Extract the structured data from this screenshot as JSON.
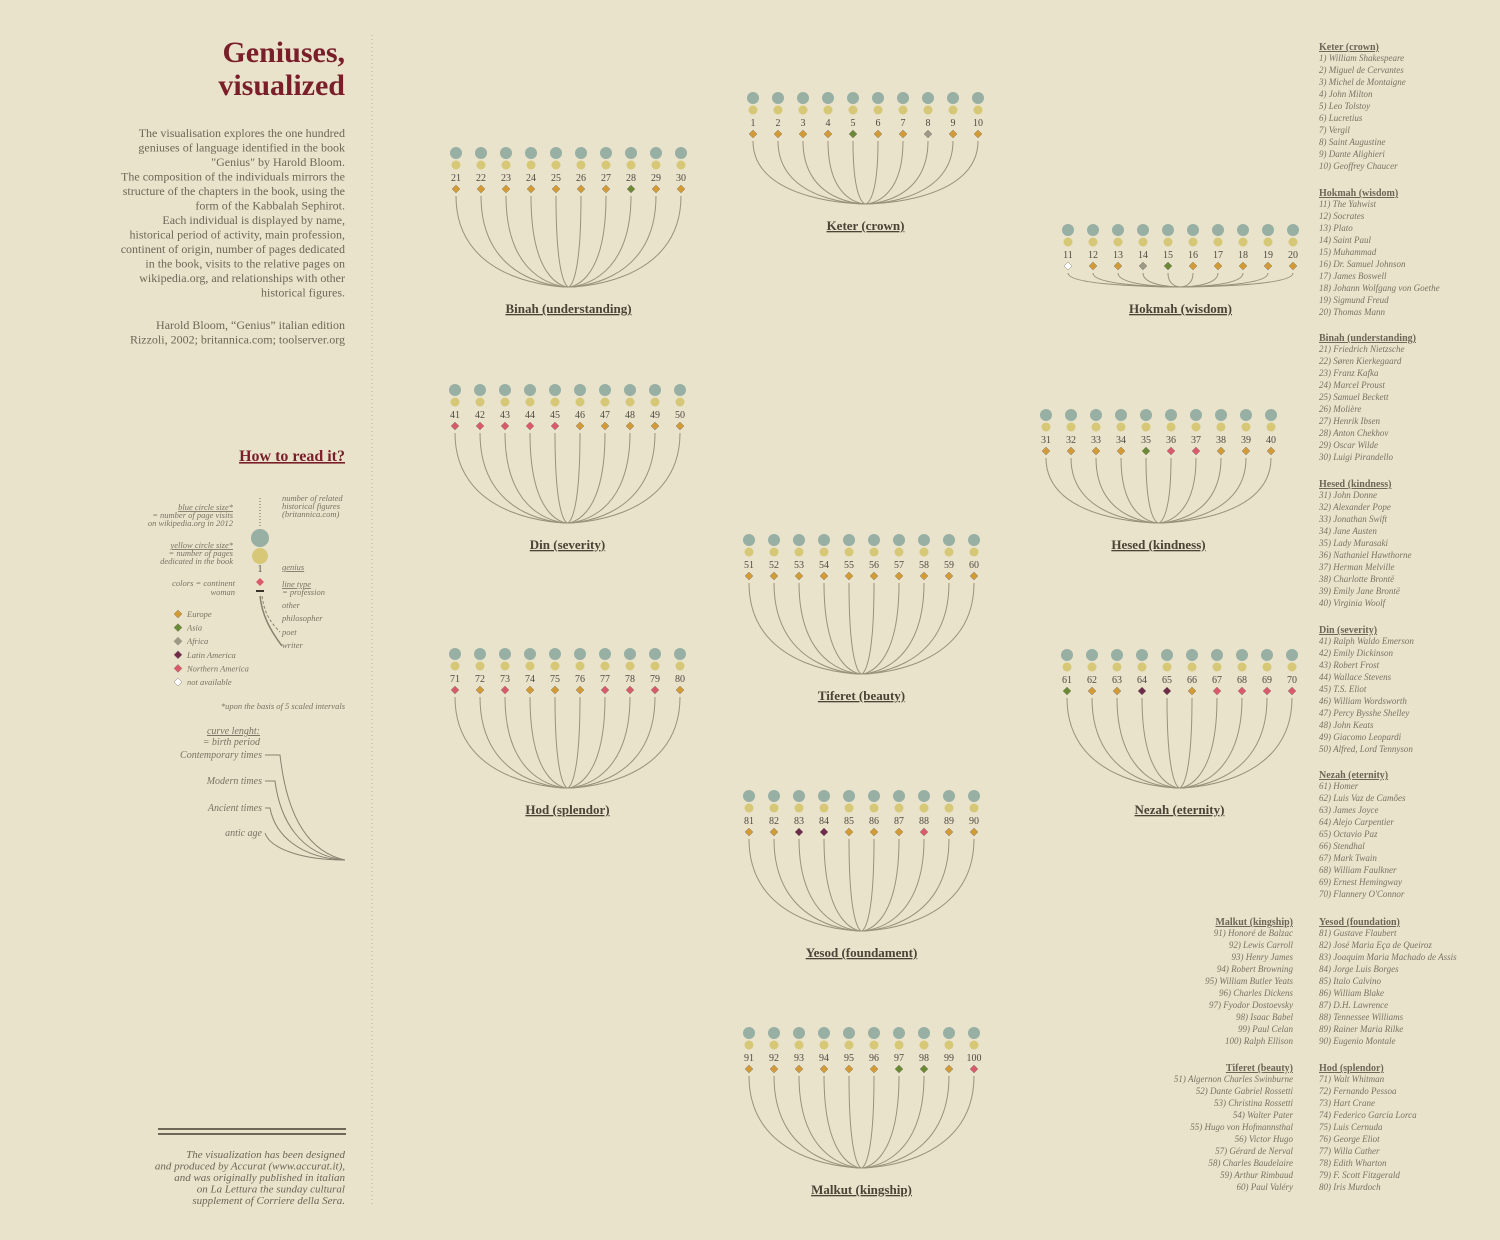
{
  "header": {
    "title_lines": [
      "Geniuses,",
      "visualized"
    ],
    "description": [
      "The visualisation explores the one hundred",
      "geniuses of language identified in the book",
      "\"Genius\" by Harold Bloom.",
      "The composition of the individuals mirrors the",
      "structure of the chapters in the book, using the",
      "form of the Kabbalah Sephirot.",
      "Each individual is displayed by name,",
      "historical period of activity, main profession,",
      "continent of origin, number of pages dedicated",
      "in the book, visits to the relative pages on",
      "wikipedia.org, and relationships with other",
      "historical figures."
    ],
    "sources": [
      "Harold Bloom, “Genius” italian edition",
      "Rizzoli, 2002; britannica.com; toolserver.org"
    ]
  },
  "legend": {
    "title": "How to read it?",
    "blue_title": "blue circle size*",
    "blue_text": [
      "= number of page visits",
      "on wikipedia.org in 2012"
    ],
    "yellow_title": "yellow circle size*",
    "yellow_text": [
      "= number of pages",
      "dedicated in the book"
    ],
    "related": [
      "number of related",
      "historical figures",
      "(britannica.com)"
    ],
    "sample_number": "1",
    "genius": "genius",
    "colors": "colors = continent",
    "woman": "woman",
    "line_type": "line type",
    "profession": "= profession",
    "professions": [
      "other",
      "philosopher",
      "poet",
      "writer"
    ],
    "continents": [
      {
        "name": "Europe",
        "color": "#d29b35"
      },
      {
        "name": "Asia",
        "color": "#6b8a36"
      },
      {
        "name": "Africa",
        "color": "#9c9a86"
      },
      {
        "name": "Latin America",
        "color": "#6e2c4a"
      },
      {
        "name": "Northern America",
        "color": "#d95a6c"
      },
      {
        "name": "not available",
        "color": "#ffffff"
      }
    ],
    "note": "*upon the basis of 5 scaled intervals",
    "curve_title": "curve lenght:",
    "curve_text": "= birth period",
    "periods": [
      "Contemporary times",
      "Modern times",
      "Ancient times",
      "antic age"
    ]
  },
  "sephirot": [
    {
      "name": "Keter (crown)",
      "list_name": "Keter (crown)",
      "members": [
        {
          "id": "1",
          "entry": "1) William Shakespeare",
          "continent": "Europe"
        },
        {
          "id": "2",
          "entry": "2) Miguel de Cervantes",
          "continent": "Europe"
        },
        {
          "id": "3",
          "entry": "3) Michel de Montaigne",
          "continent": "Europe"
        },
        {
          "id": "4",
          "entry": "4) John Milton",
          "continent": "Europe"
        },
        {
          "id": "5",
          "entry": "5) Leo Tolstoy",
          "continent": "Asia"
        },
        {
          "id": "6",
          "entry": "6) Lucretius",
          "continent": "Europe"
        },
        {
          "id": "7",
          "entry": "7) Vergil",
          "continent": "Europe"
        },
        {
          "id": "8",
          "entry": "8) Saint Augustine",
          "continent": "Africa"
        },
        {
          "id": "9",
          "entry": "9) Dante Alighieri",
          "continent": "Europe"
        },
        {
          "id": "10",
          "entry": "10) Geoffrey Chaucer",
          "continent": "Europe"
        }
      ]
    },
    {
      "name": "Hokmah (wisdom)",
      "list_name": "Hokmah (wisdom)",
      "members": [
        {
          "id": "11",
          "entry": "11) The Yahwist",
          "continent": "not available"
        },
        {
          "id": "12",
          "entry": "12) Socrates",
          "continent": "Europe"
        },
        {
          "id": "13",
          "entry": "13) Plato",
          "continent": "Europe"
        },
        {
          "id": "14",
          "entry": "14) Saint Paul",
          "continent": "Africa"
        },
        {
          "id": "15",
          "entry": "15)  Muhammad",
          "continent": "Asia"
        },
        {
          "id": "16",
          "entry": "16) Dr. Samuel Johnson",
          "continent": "Europe"
        },
        {
          "id": "17",
          "entry": "17) James Boswell",
          "continent": "Europe"
        },
        {
          "id": "18",
          "entry": "18) Johann Wolfgang von Goethe",
          "continent": "Europe"
        },
        {
          "id": "19",
          "entry": "19) Sigmund Freud",
          "continent": "Europe"
        },
        {
          "id": "20",
          "entry": "20) Thomas Mann",
          "continent": "Europe"
        }
      ]
    },
    {
      "name": "Binah (understanding)",
      "list_name": "Binah (understanding)",
      "members": [
        {
          "id": "21",
          "entry": "21) Friedrich Nietzsche",
          "continent": "Europe"
        },
        {
          "id": "22",
          "entry": "22) Søren Kierkegaard",
          "continent": "Europe"
        },
        {
          "id": "23",
          "entry": "23) Franz Kafka",
          "continent": "Europe"
        },
        {
          "id": "24",
          "entry": "24) Marcel Proust",
          "continent": "Europe"
        },
        {
          "id": "25",
          "entry": "25) Samuel Beckett",
          "continent": "Europe"
        },
        {
          "id": "26",
          "entry": "26) Molière",
          "continent": "Europe"
        },
        {
          "id": "27",
          "entry": "27) Henrik Ibsen",
          "continent": "Europe"
        },
        {
          "id": "28",
          "entry": "28) Anton Chekhov",
          "continent": "Asia"
        },
        {
          "id": "29",
          "entry": "29) Oscar Wilde",
          "continent": "Europe"
        },
        {
          "id": "30",
          "entry": "30) Luigi Pirandello",
          "continent": "Europe"
        }
      ]
    },
    {
      "name": "Hesed (kindness)",
      "list_name": "Hesed (kindness)",
      "members": [
        {
          "id": "31",
          "entry": "31) John Donne",
          "continent": "Europe"
        },
        {
          "id": "32",
          "entry": "32) Alexander Pope",
          "continent": "Europe"
        },
        {
          "id": "33",
          "entry": "33) Jonathan Swift",
          "continent": "Europe"
        },
        {
          "id": "34",
          "entry": "34) Jane Austen",
          "continent": "Europe"
        },
        {
          "id": "35",
          "entry": "35) Lady Murasaki",
          "continent": "Asia"
        },
        {
          "id": "36",
          "entry": "36) Nathaniel Hawthorne",
          "continent": "Northern America"
        },
        {
          "id": "37",
          "entry": "37) Herman Melville",
          "continent": "Northern America"
        },
        {
          "id": "38",
          "entry": "38) Charlotte Brontë",
          "continent": "Europe"
        },
        {
          "id": "39",
          "entry": "39) Emily Jane Brontë",
          "continent": "Europe"
        },
        {
          "id": "40",
          "entry": "40) Virginia Woolf",
          "continent": "Europe"
        }
      ]
    },
    {
      "name": "Din (severity)",
      "list_name": "Din (severity)",
      "members": [
        {
          "id": "41",
          "entry": "41) Ralph Waldo Emerson",
          "continent": "Northern America"
        },
        {
          "id": "42",
          "entry": "42) Emily Dickinson",
          "continent": "Northern America"
        },
        {
          "id": "43",
          "entry": "43) Robert Frost",
          "continent": "Northern America"
        },
        {
          "id": "44",
          "entry": "44) Wallace Stevens",
          "continent": "Northern America"
        },
        {
          "id": "45",
          "entry": "45) T.S. Eliot",
          "continent": "Northern America"
        },
        {
          "id": "46",
          "entry": "46) William Wordsworth",
          "continent": "Europe"
        },
        {
          "id": "47",
          "entry": "47) Percy Bysshe Shelley",
          "continent": "Europe"
        },
        {
          "id": "48",
          "entry": "48) John Keats",
          "continent": "Europe"
        },
        {
          "id": "49",
          "entry": "49) Giacomo Leopardi",
          "continent": "Europe"
        },
        {
          "id": "50",
          "entry": "50) Alfred, Lord Tennyson",
          "continent": "Europe"
        }
      ]
    },
    {
      "name": "Nezah (eternity)",
      "list_name": "Nezah (eternity)",
      "members": [
        {
          "id": "61",
          "entry": "61) Homer",
          "continent": "Asia"
        },
        {
          "id": "62",
          "entry": "62) Luis Vaz de Camões",
          "continent": "Europe"
        },
        {
          "id": "63",
          "entry": "63) James Joyce",
          "continent": "Europe"
        },
        {
          "id": "64",
          "entry": "64) Alejo Carpentier",
          "continent": "Latin America"
        },
        {
          "id": "65",
          "entry": "65) Octavio Paz",
          "continent": "Latin America"
        },
        {
          "id": "66",
          "entry": "66) Stendhal",
          "continent": "Europe"
        },
        {
          "id": "67",
          "entry": "67) Mark Twain",
          "continent": "Northern America"
        },
        {
          "id": "68",
          "entry": "68) William Faulkner",
          "continent": "Northern America"
        },
        {
          "id": "69",
          "entry": "69) Ernest Hemingway",
          "continent": "Northern America"
        },
        {
          "id": "70",
          "entry": "70) Flannery O'Connor",
          "continent": "Northern America"
        }
      ]
    },
    {
      "name": "Malkut (kingship)",
      "list_name": "Malkut (kingship)",
      "members": [
        {
          "id": "91",
          "entry": "91) Honoré de Balzac",
          "continent": "Europe"
        },
        {
          "id": "92",
          "entry": "92) Lewis Carroll",
          "continent": "Europe"
        },
        {
          "id": "93",
          "entry": "93) Henry James",
          "continent": "Europe"
        },
        {
          "id": "94",
          "entry": "94) Robert Browning",
          "continent": "Europe"
        },
        {
          "id": "95",
          "entry": "95) William Butler Yeats",
          "continent": "Europe"
        },
        {
          "id": "96",
          "entry": "96) Charles Dickens",
          "continent": "Europe"
        },
        {
          "id": "97",
          "entry": "97) Fyodor Dostoevsky",
          "continent": "Asia"
        },
        {
          "id": "98",
          "entry": "98) Isaac Babel",
          "continent": "Asia"
        },
        {
          "id": "99",
          "entry": "99) Paul Celan",
          "continent": "Europe"
        },
        {
          "id": "100",
          "entry": "100) Ralph Ellison",
          "continent": "Northern America"
        }
      ]
    },
    {
      "name": "Yesod (foundament)",
      "list_name": "Yesod (foundation)",
      "members": [
        {
          "id": "81",
          "entry": "81) Gustave Flaubert",
          "continent": "Europe"
        },
        {
          "id": "82",
          "entry": "82) José Maria Eça de Queiroz",
          "continent": "Europe"
        },
        {
          "id": "83",
          "entry": "83) Joaquim Maria Machado de Assis",
          "continent": "Latin America"
        },
        {
          "id": "84",
          "entry": "84) Jorge Luis Borges",
          "continent": "Latin America"
        },
        {
          "id": "85",
          "entry": "85) Italo Calvino",
          "continent": "Europe"
        },
        {
          "id": "86",
          "entry": "86) William Blake",
          "continent": "Europe"
        },
        {
          "id": "87",
          "entry": "87) D.H. Lawrence",
          "continent": "Europe"
        },
        {
          "id": "88",
          "entry": "88) Tennessee Williams",
          "continent": "Northern America"
        },
        {
          "id": "89",
          "entry": "89) Rainer Maria Rilke",
          "continent": "Europe"
        },
        {
          "id": "90",
          "entry": "90) Eugenio Montale",
          "continent": "Europe"
        }
      ]
    },
    {
      "name": "Tiferet (beauty)",
      "list_name": "Tiferet (beauty)",
      "members": [
        {
          "id": "51",
          "entry": "51) Algernon Charles Swinburne",
          "continent": "Europe"
        },
        {
          "id": "52",
          "entry": "52) Dante Gabriel Rossetti",
          "continent": "Europe"
        },
        {
          "id": "53",
          "entry": "53) Christina Rossetti",
          "continent": "Europe"
        },
        {
          "id": "54",
          "entry": "54) Walter Pater",
          "continent": "Europe"
        },
        {
          "id": "55",
          "entry": "55) Hugo von Hofmannsthal",
          "continent": "Europe"
        },
        {
          "id": "56",
          "entry": "56) Victor Hugo",
          "continent": "Europe"
        },
        {
          "id": "57",
          "entry": "57) Gérard de Nerval",
          "continent": "Europe"
        },
        {
          "id": "58",
          "entry": "58) Charles Baudelaire",
          "continent": "Europe"
        },
        {
          "id": "59",
          "entry": "59) Arthur Rimbaud",
          "continent": "Europe"
        },
        {
          "id": "60",
          "entry": "60) Paul Valéry",
          "continent": "Europe"
        }
      ]
    },
    {
      "name": "Hod (splendor)",
      "list_name": "Hod (splendor)",
      "members": [
        {
          "id": "71",
          "entry": "71) Walt Whitman",
          "continent": "Northern America"
        },
        {
          "id": "72",
          "entry": "72) Fernando Pessoa",
          "continent": "Europe"
        },
        {
          "id": "73",
          "entry": "73) Hart Crane",
          "continent": "Northern America"
        },
        {
          "id": "74",
          "entry": "74) Federico García Lorca",
          "continent": "Europe"
        },
        {
          "id": "75",
          "entry": "75) Luis Cernuda",
          "continent": "Europe"
        },
        {
          "id": "76",
          "entry": "76) George Eliot",
          "continent": "Europe"
        },
        {
          "id": "77",
          "entry": "77) Willa Cather",
          "continent": "Northern America"
        },
        {
          "id": "78",
          "entry": "78) Edith Wharton",
          "continent": "Northern America"
        },
        {
          "id": "79",
          "entry": "79) F. Scott Fitzgerald",
          "continent": "Northern America"
        },
        {
          "id": "80",
          "entry": "80) Iris Murdoch",
          "continent": "Europe"
        }
      ]
    }
  ],
  "footer": [
    "The visualization has been designed",
    "and produced by Accurat (www.accurat.it),",
    "and was originally published in italian",
    "on La Lettura the sunday cultural",
    "supplement of Corriere della Sera."
  ]
}
